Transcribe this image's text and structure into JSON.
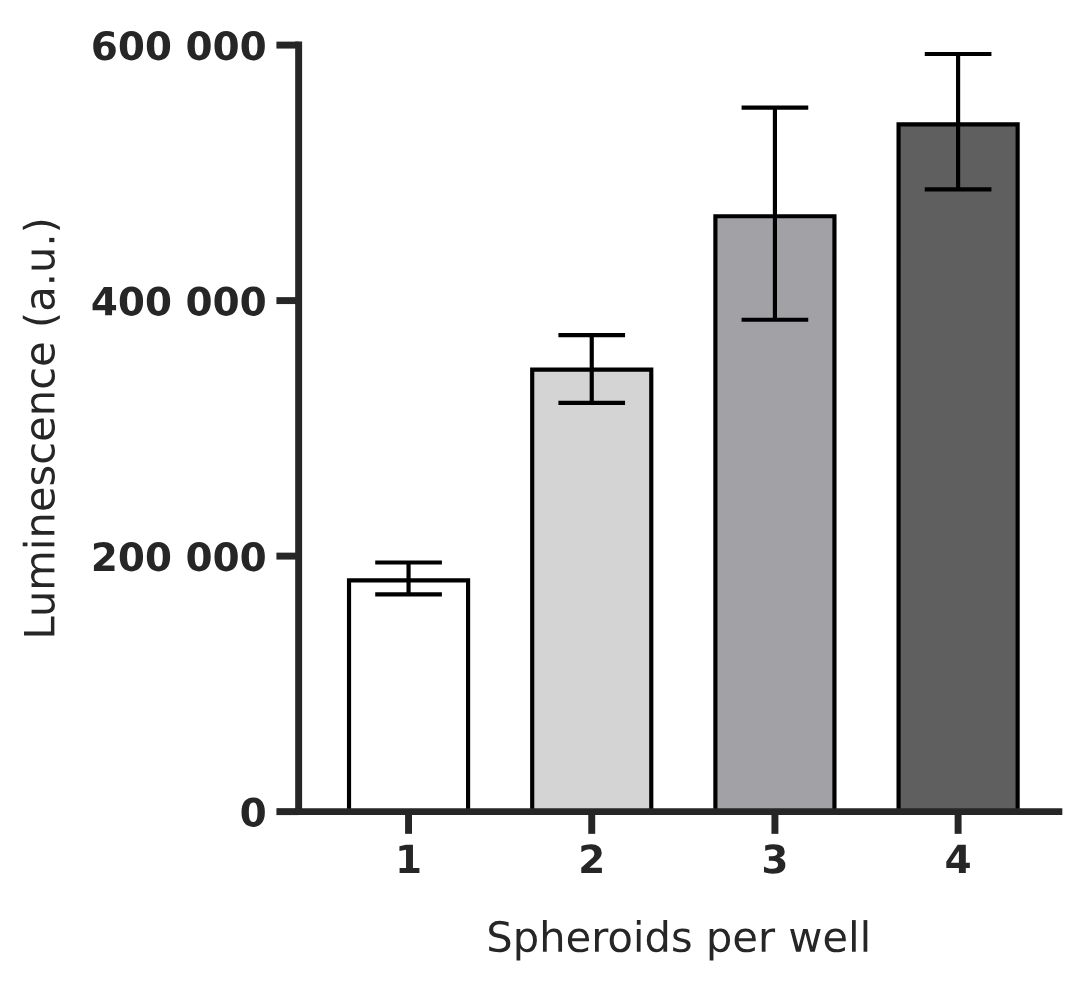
{
  "chart_data": {
    "type": "bar",
    "xlabel": "Spheroids per well",
    "ylabel": "Luminescence (a.u.)",
    "categories": [
      "1",
      "2",
      "3",
      "4"
    ],
    "values": [
      181000,
      346000,
      466000,
      538000
    ],
    "errors": [
      [
        170000,
        195000
      ],
      [
        320000,
        373000
      ],
      [
        385000,
        551000
      ],
      [
        487000,
        593000
      ]
    ],
    "colors": [
      "#ffffff",
      "#d4d4d4",
      "#a2a2a6",
      "#5f5f5f"
    ],
    "ylim": [
      0,
      600000
    ],
    "yticks": [
      0,
      {
        "value": 200000,
        "label": "200 000"
      },
      {
        "value": 400000,
        "label": "400 000"
      },
      {
        "value": 600000,
        "label": "600 000"
      }
    ],
    "grid": false
  }
}
